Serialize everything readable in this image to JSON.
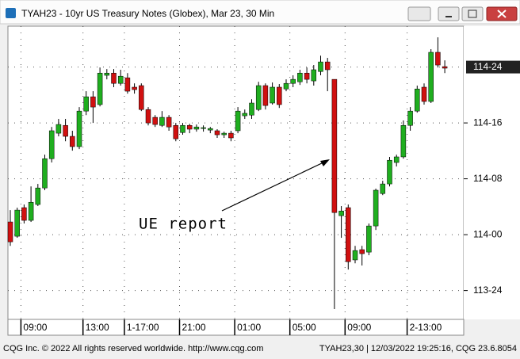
{
  "window": {
    "title": "TYAH23 - 10yr US Treasury Notes (Globex), Mar 23, 30 Min"
  },
  "chart_data": {
    "type": "candlestick",
    "categories": [
      null,
      null,
      "09:00",
      null,
      null,
      null,
      null,
      null,
      null,
      null,
      null,
      "13:00",
      null,
      null,
      null,
      null,
      null,
      "1-17:00",
      null,
      null,
      null,
      null,
      null,
      null,
      null,
      "21:00",
      null,
      null,
      null,
      null,
      null,
      null,
      null,
      "01:00",
      null,
      null,
      null,
      null,
      null,
      null,
      null,
      "05:00",
      null,
      null,
      null,
      null,
      null,
      null,
      null,
      "09:00",
      null,
      null,
      null,
      null,
      null,
      null,
      null,
      null,
      "2-13:00",
      null,
      null,
      null,
      null,
      null
    ],
    "open": [
      114.057,
      113.993,
      114.121,
      114.064,
      114.135,
      114.209,
      114.34,
      114.454,
      114.489,
      114.44,
      114.394,
      114.553,
      114.617,
      114.582,
      114.713,
      114.723,
      114.677,
      114.702,
      114.66,
      114.667,
      114.56,
      114.525,
      114.489,
      114.525,
      114.489,
      114.457,
      114.489,
      114.472,
      114.475,
      114.468,
      114.465,
      114.447,
      114.454,
      114.465,
      114.532,
      114.535,
      114.56,
      114.667,
      114.589,
      114.66,
      114.652,
      114.677,
      114.684,
      114.723,
      114.688,
      114.73,
      114.773,
      114.695,
      114.085,
      114.121,
      113.887,
      113.933,
      113.922,
      114.039,
      114.184,
      114.227,
      114.323,
      114.348,
      114.489,
      114.553,
      114.66,
      114.596,
      114.816,
      114.752
    ],
    "high": [
      114.11,
      114.121,
      114.135,
      114.216,
      114.227,
      114.358,
      114.482,
      114.518,
      114.518,
      114.465,
      114.571,
      114.642,
      114.642,
      114.748,
      114.741,
      114.741,
      114.738,
      114.723,
      114.677,
      114.677,
      114.571,
      114.535,
      114.553,
      114.535,
      114.5,
      114.5,
      114.496,
      114.493,
      114.489,
      114.482,
      114.472,
      114.461,
      114.465,
      114.571,
      114.56,
      114.606,
      114.684,
      114.677,
      114.681,
      114.674,
      114.695,
      114.713,
      114.738,
      114.748,
      114.759,
      114.801,
      114.791,
      114.695,
      114.128,
      114.135,
      113.95,
      113.95,
      114.05,
      114.206,
      114.241,
      114.348,
      114.358,
      114.511,
      114.571,
      114.667,
      114.677,
      114.83,
      114.883,
      114.78
    ],
    "low": [
      113.95,
      113.986,
      114.05,
      114.057,
      114.128,
      114.199,
      114.323,
      114.44,
      114.418,
      114.376,
      114.383,
      114.535,
      114.5,
      114.574,
      114.695,
      114.66,
      114.667,
      114.631,
      114.631,
      114.553,
      114.489,
      114.482,
      114.482,
      114.465,
      114.418,
      114.447,
      114.454,
      114.461,
      114.461,
      114.454,
      114.433,
      114.433,
      114.418,
      114.454,
      114.518,
      114.518,
      114.553,
      114.56,
      114.582,
      114.567,
      114.642,
      114.66,
      114.67,
      114.677,
      114.667,
      114.713,
      114.642,
      113.667,
      113.986,
      113.844,
      113.872,
      113.862,
      113.908,
      114.021,
      114.177,
      114.216,
      114.305,
      114.34,
      114.465,
      114.546,
      114.582,
      114.589,
      114.748,
      114.723
    ],
    "close": [
      113.968,
      114.11,
      114.064,
      114.145,
      114.209,
      114.34,
      114.465,
      114.493,
      114.44,
      114.394,
      114.553,
      114.617,
      114.571,
      114.723,
      114.723,
      114.677,
      114.709,
      114.642,
      114.649,
      114.56,
      114.5,
      114.493,
      114.525,
      114.482,
      114.429,
      114.489,
      114.472,
      114.482,
      114.479,
      114.475,
      114.447,
      114.454,
      114.433,
      114.553,
      114.543,
      114.589,
      114.667,
      114.578,
      114.66,
      114.582,
      114.677,
      114.695,
      114.723,
      114.695,
      114.738,
      114.773,
      114.738,
      114.099,
      114.106,
      113.879,
      113.929,
      113.915,
      114.039,
      114.199,
      114.227,
      114.333,
      114.348,
      114.489,
      114.553,
      114.652,
      114.596,
      114.816,
      114.759,
      114.745
    ],
    "up_color": "#1fae1f",
    "down_color": "#d01010",
    "ylim": [
      113.621,
      114.933
    ],
    "yticks": [
      {
        "value": 113.75,
        "label": "113-24"
      },
      {
        "value": 114,
        "label": "114-00"
      },
      {
        "value": 114.25,
        "label": "114-08"
      },
      {
        "value": 114.5,
        "label": "114-16"
      }
    ],
    "last_price": {
      "value": 114.75,
      "label": "114-24"
    },
    "annotation": "UE report",
    "grid": true
  },
  "footer": {
    "left": "CQG Inc. © 2022 All rights reserved worldwide. http://www.cqg.com",
    "right": "TYAH23,30 | 12/03/2022 19:25:16, CQG 23.6.8054"
  }
}
